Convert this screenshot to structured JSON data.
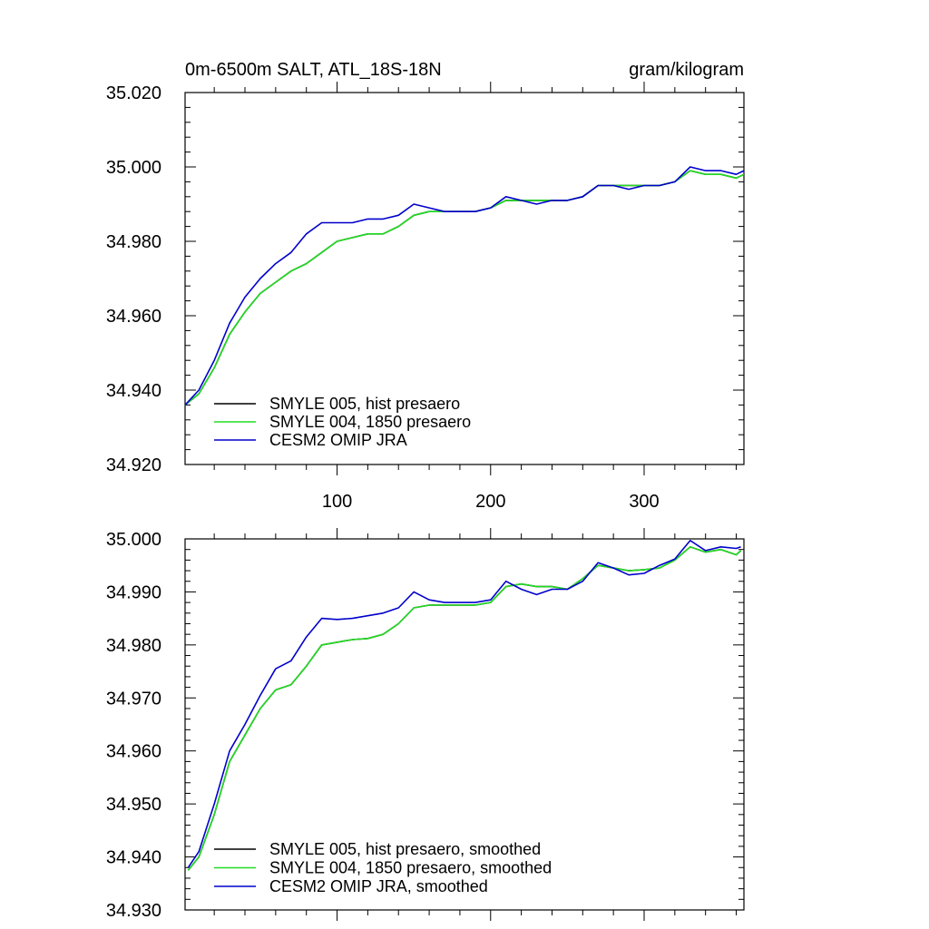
{
  "chart_data": [
    {
      "type": "line",
      "title_left": "0m-6500m SALT, ATL_18S-18N",
      "title_right": "gram/kilogram",
      "xlim": [
        1,
        365
      ],
      "ylim": [
        34.92,
        35.02
      ],
      "yticks": [
        "35.020",
        "35.000",
        "34.980",
        "34.960",
        "34.940",
        "34.920"
      ],
      "ytick_values": [
        35.02,
        35.0,
        34.98,
        34.96,
        34.94,
        34.92
      ],
      "xticks": [
        "100",
        "200",
        "300"
      ],
      "xtick_values": [
        100,
        200,
        300
      ],
      "grid": false,
      "legend_position": "bottom-left",
      "x": [
        1,
        10,
        20,
        30,
        40,
        50,
        60,
        70,
        80,
        90,
        100,
        110,
        120,
        130,
        140,
        150,
        160,
        170,
        180,
        190,
        200,
        210,
        220,
        230,
        240,
        250,
        260,
        270,
        280,
        290,
        300,
        310,
        320,
        330,
        340,
        350,
        360,
        365
      ],
      "series": [
        {
          "name": "SMYLE 005, hist presaero",
          "color": "#000000",
          "values": [
            34.936,
            34.939,
            34.946,
            34.955,
            34.961,
            34.966,
            34.969,
            34.972,
            34.974,
            34.977,
            34.98,
            34.981,
            34.982,
            34.982,
            34.984,
            34.987,
            34.988,
            34.988,
            34.988,
            34.988,
            34.989,
            34.991,
            34.991,
            34.991,
            34.991,
            34.991,
            34.992,
            34.995,
            34.995,
            34.995,
            34.995,
            34.995,
            34.996,
            34.999,
            34.998,
            34.998,
            34.997,
            34.998
          ]
        },
        {
          "name": "SMYLE 004, 1850 presaero",
          "color": "#22dd22",
          "values": [
            34.936,
            34.939,
            34.946,
            34.955,
            34.961,
            34.966,
            34.969,
            34.972,
            34.974,
            34.977,
            34.98,
            34.981,
            34.982,
            34.982,
            34.984,
            34.987,
            34.988,
            34.988,
            34.988,
            34.988,
            34.989,
            34.991,
            34.991,
            34.991,
            34.991,
            34.991,
            34.992,
            34.995,
            34.995,
            34.995,
            34.995,
            34.995,
            34.996,
            34.999,
            34.998,
            34.998,
            34.997,
            34.998
          ]
        },
        {
          "name": "CESM2 OMIP JRA",
          "color": "#0000cc",
          "values": [
            34.936,
            34.94,
            34.948,
            34.958,
            34.965,
            34.97,
            34.974,
            34.977,
            34.982,
            34.985,
            34.985,
            34.985,
            34.986,
            34.986,
            34.987,
            34.99,
            34.989,
            34.988,
            34.988,
            34.988,
            34.989,
            34.992,
            34.991,
            34.99,
            34.991,
            34.991,
            34.992,
            34.995,
            34.995,
            34.994,
            34.995,
            34.995,
            34.996,
            35.0,
            34.999,
            34.999,
            34.998,
            34.999
          ]
        }
      ]
    },
    {
      "type": "line",
      "xlim": [
        1,
        365
      ],
      "ylim": [
        34.93,
        35.0
      ],
      "yticks": [
        "35.000",
        "34.990",
        "34.980",
        "34.970",
        "34.960",
        "34.950",
        "34.940",
        "34.930"
      ],
      "ytick_values": [
        35.0,
        34.99,
        34.98,
        34.97,
        34.96,
        34.95,
        34.94,
        34.93
      ],
      "xtick_values": [
        100,
        200,
        300
      ],
      "grid": false,
      "legend_position": "bottom-left",
      "x": [
        3,
        10,
        20,
        30,
        40,
        50,
        60,
        70,
        80,
        90,
        100,
        110,
        120,
        130,
        140,
        150,
        160,
        170,
        180,
        190,
        200,
        210,
        220,
        230,
        240,
        250,
        260,
        270,
        280,
        290,
        300,
        310,
        320,
        330,
        340,
        350,
        360,
        363
      ],
      "series": [
        {
          "name": "SMYLE 005, hist presaero, smoothed",
          "color": "#000000",
          "values": [
            34.9375,
            34.94,
            34.948,
            34.958,
            34.963,
            34.968,
            34.9715,
            34.9725,
            34.976,
            34.98,
            34.9805,
            34.981,
            34.9812,
            34.982,
            34.984,
            34.987,
            34.9875,
            34.9875,
            34.9875,
            34.9875,
            34.988,
            34.991,
            34.9915,
            34.991,
            34.991,
            34.9905,
            34.9925,
            34.995,
            34.9945,
            34.994,
            34.9942,
            34.9945,
            34.996,
            34.9985,
            34.9975,
            34.998,
            34.997,
            34.9978
          ]
        },
        {
          "name": "SMYLE 004, 1850 presaero, smoothed",
          "color": "#22dd22",
          "values": [
            34.9375,
            34.94,
            34.948,
            34.958,
            34.963,
            34.968,
            34.9715,
            34.9725,
            34.976,
            34.98,
            34.9805,
            34.981,
            34.9812,
            34.982,
            34.984,
            34.987,
            34.9875,
            34.9875,
            34.9875,
            34.9875,
            34.988,
            34.991,
            34.9915,
            34.991,
            34.991,
            34.9905,
            34.9925,
            34.995,
            34.9945,
            34.994,
            34.9942,
            34.9945,
            34.996,
            34.9985,
            34.9975,
            34.998,
            34.997,
            34.9978
          ]
        },
        {
          "name": "CESM2 OMIP JRA, smoothed",
          "color": "#0000cc",
          "values": [
            34.938,
            34.941,
            34.95,
            34.96,
            34.965,
            34.9705,
            34.9755,
            34.977,
            34.9815,
            34.985,
            34.9848,
            34.985,
            34.9855,
            34.986,
            34.987,
            34.99,
            34.9885,
            34.988,
            34.988,
            34.988,
            34.9885,
            34.992,
            34.9905,
            34.9895,
            34.9905,
            34.9905,
            34.992,
            34.9955,
            34.9945,
            34.9932,
            34.9935,
            34.995,
            34.9962,
            34.9997,
            34.9978,
            34.9985,
            34.9982,
            34.9985
          ]
        }
      ]
    }
  ]
}
